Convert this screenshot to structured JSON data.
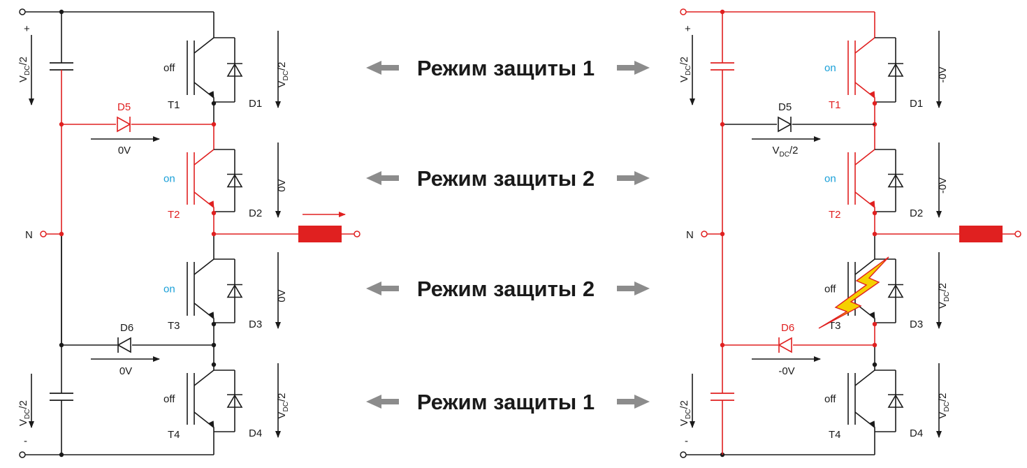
{
  "colors": {
    "wire": "#1a1a1a",
    "active": "#e02020",
    "on_label": "#1aa0d8",
    "arrow_grey": "#8c8c8c",
    "load": "#e02020",
    "fault_bolt": "#f5d000"
  },
  "modes": [
    "Режим защиты 1",
    "Режим защиты 2",
    "Режим защиты 2",
    "Режим защиты 1"
  ],
  "left": {
    "n_label": "N",
    "plus": "+",
    "minus": "-",
    "cap_label": "V",
    "cap_sub": "DC",
    "cap_tail": "/2",
    "switches": [
      {
        "name": "T1",
        "state": "off",
        "diode": "D1",
        "voltage": "V",
        "voltage_sub": "DC",
        "voltage_tail": "/2"
      },
      {
        "name": "T2",
        "state": "on",
        "diode": "D2",
        "voltage": "0V",
        "voltage_sub": "",
        "voltage_tail": ""
      },
      {
        "name": "T3",
        "state": "on",
        "diode": "D3",
        "voltage": "0V",
        "voltage_sub": "",
        "voltage_tail": ""
      },
      {
        "name": "T4",
        "state": "off",
        "diode": "D4",
        "voltage": "V",
        "voltage_sub": "DC",
        "voltage_tail": "/2"
      }
    ],
    "clamp_diodes": [
      {
        "name": "D5",
        "voltage": "0V",
        "voltage_sub": "",
        "voltage_tail": ""
      },
      {
        "name": "D6",
        "voltage": "0V",
        "voltage_sub": "",
        "voltage_tail": ""
      }
    ]
  },
  "right": {
    "n_label": "N",
    "plus": "+",
    "minus": "-",
    "cap_label": "V",
    "cap_sub": "DC",
    "cap_tail": "/2",
    "switches": [
      {
        "name": "T1",
        "state": "on",
        "diode": "D1",
        "voltage": "-0V",
        "voltage_sub": "",
        "voltage_tail": ""
      },
      {
        "name": "T2",
        "state": "on",
        "diode": "D2",
        "voltage": "-0V",
        "voltage_sub": "",
        "voltage_tail": ""
      },
      {
        "name": "T3",
        "state": "off",
        "diode": "D3",
        "voltage": "V",
        "voltage_sub": "DC",
        "voltage_tail": "/2"
      },
      {
        "name": "T4",
        "state": "off",
        "diode": "D4",
        "voltage": "V",
        "voltage_sub": "DC",
        "voltage_tail": "/2"
      }
    ],
    "clamp_diodes": [
      {
        "name": "D5",
        "voltage": "V",
        "voltage_sub": "DC",
        "voltage_tail": "/2"
      },
      {
        "name": "D6",
        "voltage": "-0V",
        "voltage_sub": "",
        "voltage_tail": ""
      }
    ]
  }
}
